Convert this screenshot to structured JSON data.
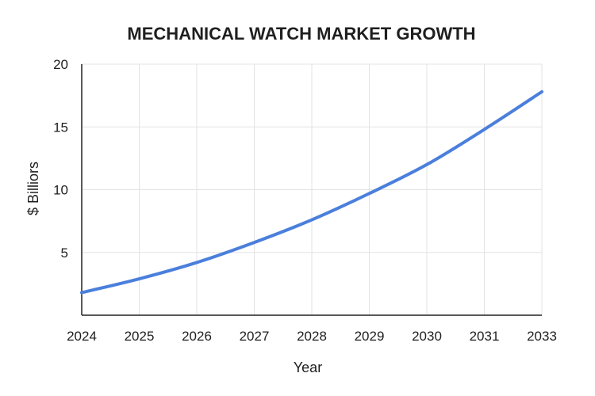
{
  "chart_data": {
    "type": "line",
    "title": "MECHANICAL WATCH MARKET GROWTH",
    "xlabel": "Year",
    "ylabel": "$ Billiors",
    "x_tick_labels": [
      "2024",
      "2025",
      "2026",
      "2027",
      "2028",
      "2029",
      "2030",
      "2031",
      "2033"
    ],
    "y_ticks": [
      5,
      10,
      15,
      20
    ],
    "ylim": [
      0,
      20
    ],
    "grid": true,
    "series": [
      {
        "values": [
          1.8,
          2.9,
          4.2,
          5.8,
          7.6,
          9.7,
          12.0,
          14.8,
          17.8
        ]
      }
    ],
    "colors": {
      "line": "#4a7fdc",
      "grid": "#e3e3e3",
      "axis": "#222222",
      "text": "#1f1f1f"
    }
  }
}
